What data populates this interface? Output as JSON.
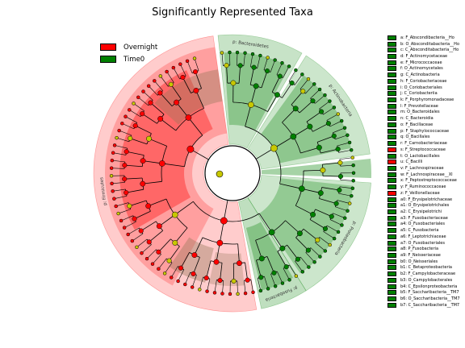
{
  "title": "Significantly Represented Taxa",
  "colors": {
    "overnight": "#ff0000",
    "time0": "#008000",
    "neutral": "#c8c800"
  },
  "legend": [
    {
      "label": "Overnight",
      "color": "#ff0000"
    },
    {
      "label": "Time0",
      "color": "#008000"
    }
  ],
  "sectors": [
    {
      "label": "p: Firmicutes",
      "group": "overnight"
    },
    {
      "label": "p: Bacteroidetes",
      "group": "time0"
    },
    {
      "label": "p: Actinobacteria",
      "group": "time0"
    },
    {
      "label": "p: Proteobacteria",
      "group": "time0"
    },
    {
      "label": "p: Fusobacteria",
      "group": "time0"
    }
  ],
  "side_legend": [
    {
      "label": "a: F_Abscondibacteria__Ho",
      "group": "time0"
    },
    {
      "label": "b: O_Absconditabacteria__Ho",
      "group": "time0"
    },
    {
      "label": "c: C_Absconditabacteria__Ho",
      "group": "time0"
    },
    {
      "label": "d: F_Actinomycetaceae",
      "group": "time0"
    },
    {
      "label": "e: F_Micrococcaceae",
      "group": "time0"
    },
    {
      "label": "f: O_Actinomycetales",
      "group": "time0"
    },
    {
      "label": "g: C_Actinobacteria",
      "group": "time0"
    },
    {
      "label": "h: F_Coriobacteriaceae",
      "group": "time0"
    },
    {
      "label": "i: O_Coriobacteriales",
      "group": "time0"
    },
    {
      "label": "j: C_Coriobacteriia",
      "group": "time0"
    },
    {
      "label": "k: F_Porphyromonadaceae",
      "group": "time0"
    },
    {
      "label": "l: F_Prevotellaceae",
      "group": "time0"
    },
    {
      "label": "m: O_Bacteroidales",
      "group": "time0"
    },
    {
      "label": "n: C_Bacteroidia",
      "group": "time0"
    },
    {
      "label": "o: F_Bacillaceae",
      "group": "time0"
    },
    {
      "label": "p: F_Staphylococcaceae",
      "group": "time0"
    },
    {
      "label": "q: O_Bacillales",
      "group": "time0"
    },
    {
      "label": "r: F_Carnobacteriaceae",
      "group": "time0"
    },
    {
      "label": "s: F_Streptococcaceae",
      "group": "overnight"
    },
    {
      "label": "t: O_Lactobacillales",
      "group": "time0"
    },
    {
      "label": "u: C_Bacilli",
      "group": "overnight"
    },
    {
      "label": "v: F_Lachnospiraceae",
      "group": "time0"
    },
    {
      "label": "w: F_Lachnospiraceae__XI",
      "group": "time0"
    },
    {
      "label": "x: F_Peptostreptococcaceae",
      "group": "time0"
    },
    {
      "label": "y: F_Ruminococcaceae",
      "group": "time0"
    },
    {
      "label": "z: F_Veillonellaceae",
      "group": "overnight"
    },
    {
      "label": "a0: F_Erysipelotrichaceae",
      "group": "time0"
    },
    {
      "label": "a1: O_Erysipelotrichales",
      "group": "time0"
    },
    {
      "label": "a2: C_Erysipelotrichi",
      "group": "time0"
    },
    {
      "label": "a3: F_Fusobacteriaceae",
      "group": "time0"
    },
    {
      "label": "a4: O_Fusobacteriales",
      "group": "time0"
    },
    {
      "label": "a5: C_Fusobacteria",
      "group": "time0"
    },
    {
      "label": "a6: F_Leptotrichiaceae",
      "group": "time0"
    },
    {
      "label": "a7: O_Fusobacteriales",
      "group": "time0"
    },
    {
      "label": "a8: P_Fusobacteria",
      "group": "time0"
    },
    {
      "label": "a9: F_Neisseriaceae",
      "group": "time0"
    },
    {
      "label": "b0: O_Neisseriales",
      "group": "time0"
    },
    {
      "label": "b1: C_Betaproteobacteria",
      "group": "time0"
    },
    {
      "label": "b2: F_Campylobacteraceae",
      "group": "time0"
    },
    {
      "label": "b3: O_Campylobacterales",
      "group": "time0"
    },
    {
      "label": "b4: C_Epsilonproteobacteria",
      "group": "time0"
    },
    {
      "label": "b5: F_Saccharibacteria__TM7",
      "group": "time0"
    },
    {
      "label": "b6: O_Saccharibacteria__TM7",
      "group": "time0"
    },
    {
      "label": "b7: C_Saccharibacteria__TM7",
      "group": "time0"
    }
  ]
}
